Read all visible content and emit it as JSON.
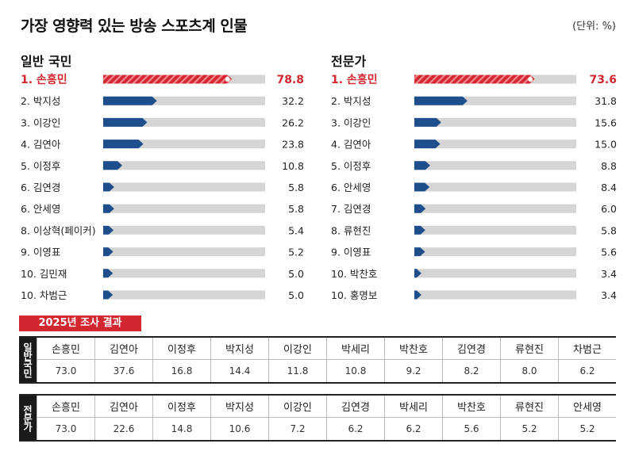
{
  "header": {
    "title": "가장 영향력 있는 방송 스포츠계 인물",
    "unit": "(단위: %)"
  },
  "colors": {
    "highlight": "#d22630",
    "bar": "#1f4e8c",
    "track": "#d5d5d5"
  },
  "chart_data": [
    {
      "type": "bar",
      "title": "일반 국민",
      "categories": [
        "1. 손흥민",
        "2. 박지성",
        "3. 이강인",
        "4. 김연아",
        "5. 이정후",
        "6. 김연경",
        "6. 안세영",
        "8. 이상혁(페이커)",
        "9. 이영표",
        "10. 김민재",
        "10. 차범근"
      ],
      "values": [
        78.8,
        32.2,
        26.2,
        23.8,
        10.8,
        5.8,
        5.8,
        5.4,
        5.2,
        5.0,
        5.0
      ],
      "value_labels": [
        "78.8",
        "32.2",
        "26.2",
        "23.8",
        "10.8",
        "5.8",
        "5.8",
        "5.4",
        "5.2",
        "5.0",
        "5.0"
      ],
      "highlight_index": 0,
      "xlim": [
        0,
        100
      ]
    },
    {
      "type": "bar",
      "title": "전문가",
      "categories": [
        "1. 손흥민",
        "2. 박지성",
        "3. 이강인",
        "4. 김연아",
        "5. 이정후",
        "6. 안세영",
        "7. 김연경",
        "8.  류현진",
        "9. 이영표",
        "10. 박찬호",
        "10. 홍명보"
      ],
      "values": [
        73.6,
        31.8,
        15.6,
        15.0,
        8.8,
        8.4,
        6.0,
        5.8,
        5.6,
        3.4,
        3.4
      ],
      "value_labels": [
        "73.6",
        "31.8",
        "15.6",
        "15.0",
        "8.8",
        "8.4",
        "6.0",
        "5.8",
        "5.6",
        "3.4",
        "3.4"
      ],
      "highlight_index": 0,
      "xlim": [
        0,
        100
      ]
    },
    {
      "type": "table",
      "title": "2025년 조사 결과",
      "rows": [
        {
          "label": "일반국민",
          "names": [
            "손흥민",
            "김연아",
            "이정후",
            "박지성",
            "이강인",
            "박세리",
            "박찬호",
            "김연경",
            "류현진",
            "차범근"
          ],
          "values": [
            "73.0",
            "37.6",
            "16.8",
            "14.4",
            "11.8",
            "10.8",
            "9.2",
            "8.2",
            "8.0",
            "6.2"
          ]
        },
        {
          "label": "전문가",
          "names": [
            "손흥민",
            "김연아",
            "이정후",
            "박지성",
            "이강인",
            "김연경",
            "박세리",
            "박찬호",
            "류현진",
            "안세영"
          ],
          "values": [
            "73.0",
            "22.6",
            "14.8",
            "10.6",
            "7.2",
            "6.2",
            "6.2",
            "5.6",
            "5.2",
            "5.2"
          ]
        }
      ]
    }
  ]
}
